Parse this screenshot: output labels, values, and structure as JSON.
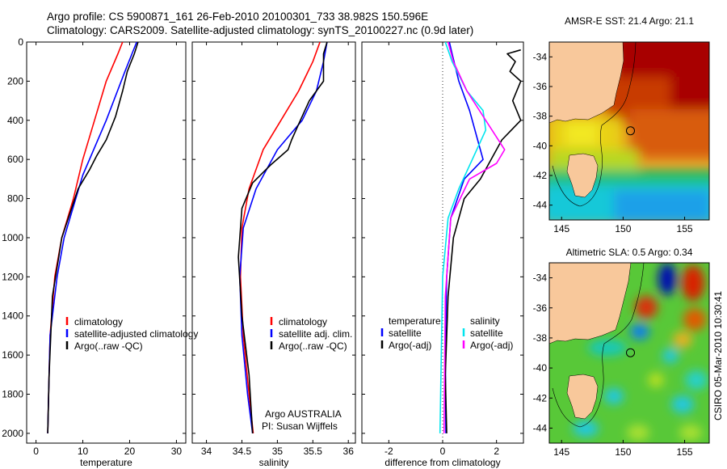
{
  "header": {
    "line1": "Argo profile: CS 5900871_161 26-Feb-2010 20100301_733 38.982S 150.596E",
    "line2": "Climatology: CARS2009. Satellite-adjusted climatology: synTS_20100227.nc (0.9d later)"
  },
  "side_label": "CSIRO 05-Mar-2010 10:30:41",
  "colors": {
    "climatology": "#ff0000",
    "satellite": "#0000ff",
    "argo": "#000000",
    "sal_sat": "#00e5ee",
    "sal_argo": "#ff00ff",
    "land": "#f8c89b"
  },
  "chart_data": [
    {
      "type": "line",
      "xlabel": "temperature",
      "xlim": [
        -2,
        32
      ],
      "xticks": [
        0,
        10,
        20,
        30
      ],
      "ylim": [
        2050,
        0
      ],
      "yticks": [
        0,
        200,
        400,
        600,
        800,
        1000,
        1200,
        1400,
        1600,
        1800,
        2000
      ],
      "legend": [
        "climatology",
        "satellite-adjusted climatology",
        "Argo(..raw -QC)"
      ],
      "series": [
        {
          "name": "climatology",
          "color": "#ff0000",
          "x": [
            18.5,
            17.5,
            15,
            12.5,
            10,
            8,
            5.5,
            4,
            3,
            2.7,
            2.5
          ],
          "y": [
            0,
            60,
            200,
            400,
            600,
            800,
            1000,
            1200,
            1500,
            1800,
            2000
          ]
        },
        {
          "name": "satellite-adjusted climatology",
          "color": "#0000ff",
          "x": [
            21.5,
            20.5,
            19,
            15,
            10,
            8.5,
            6,
            4.5,
            3,
            2.7,
            2.5
          ],
          "y": [
            0,
            60,
            150,
            400,
            680,
            800,
            1000,
            1200,
            1500,
            1800,
            2000
          ]
        },
        {
          "name": "Argo(..raw -QC)",
          "color": "#000000",
          "x": [
            21.8,
            21,
            19.5,
            18.5,
            17,
            15,
            13,
            11.5,
            9,
            5.5,
            3.5,
            2.8,
            2.5
          ],
          "y": [
            0,
            60,
            150,
            250,
            380,
            500,
            580,
            650,
            750,
            1000,
            1300,
            1700,
            2000
          ]
        }
      ]
    },
    {
      "type": "line",
      "xlabel": "salinity",
      "xlim": [
        33.8,
        36.1
      ],
      "xticks": [
        34,
        34.5,
        35,
        35.5,
        36
      ],
      "ylim": [
        2050,
        0
      ],
      "legend": [
        "climatology",
        "satellite adj. clim.",
        "Argo(..raw -QC)"
      ],
      "annotation": [
        "Argo AUSTRALIA",
        "PI: Susan Wijffels"
      ],
      "series": [
        {
          "name": "climatology",
          "color": "#ff0000",
          "x": [
            35.6,
            35.5,
            35.3,
            35.05,
            34.8,
            34.6,
            34.5,
            34.48,
            34.52,
            34.6,
            34.66
          ],
          "y": [
            0,
            100,
            250,
            400,
            550,
            750,
            950,
            1200,
            1500,
            1800,
            2000
          ]
        },
        {
          "name": "satellite adj. clim.",
          "color": "#0000ff",
          "x": [
            35.7,
            35.65,
            35.55,
            35.35,
            35.0,
            34.7,
            34.52,
            34.47,
            34.5,
            34.58,
            34.65
          ],
          "y": [
            0,
            100,
            250,
            400,
            550,
            750,
            950,
            1200,
            1500,
            1800,
            2000
          ]
        },
        {
          "name": "Argo(..raw -QC)",
          "color": "#000000",
          "x": [
            35.7,
            35.65,
            35.65,
            35.45,
            35.3,
            35.2,
            35.15,
            34.9,
            34.65,
            34.5,
            34.45,
            34.5,
            34.6,
            34.65
          ],
          "y": [
            0,
            60,
            200,
            300,
            420,
            500,
            550,
            630,
            720,
            850,
            1100,
            1400,
            1700,
            2000
          ]
        }
      ]
    },
    {
      "type": "line",
      "xlabel": "difference from climatology",
      "xlim": [
        -3,
        3
      ],
      "xticks": [
        -2,
        0,
        2
      ],
      "ylim": [
        2050,
        0
      ],
      "legend_left": [
        "temperature",
        "satellite",
        "Argo(-adj)"
      ],
      "legend_right": [
        "salinity",
        "satellite",
        "Argo(-adj)"
      ],
      "series": [
        {
          "name": "temperature satellite",
          "color": "#0000ff",
          "x": [
            0.25,
            0.35,
            0.6,
            1.0,
            1.3,
            1.5,
            0.8,
            0.3,
            0.15,
            0.1,
            0.12
          ],
          "y": [
            0,
            60,
            200,
            350,
            500,
            600,
            700,
            900,
            1200,
            1600,
            2000
          ]
        },
        {
          "name": "temperature Argo(-adj)",
          "color": "#000000",
          "x": [
            2.9,
            2.4,
            2.7,
            2.5,
            2.9,
            2.6,
            2.9,
            2.2,
            1.4,
            0.8,
            0.4,
            0.2,
            0.1,
            0.15
          ],
          "y": [
            40,
            60,
            100,
            150,
            200,
            300,
            400,
            500,
            700,
            800,
            1000,
            1300,
            1700,
            2000
          ]
        },
        {
          "name": "salinity satellite",
          "color": "#00e5ee",
          "x": [
            0.1,
            0.35,
            0.9,
            1.5,
            1.6,
            1.1,
            0.6,
            0.2,
            0.0,
            -0.05,
            -0.1
          ],
          "y": [
            0,
            100,
            250,
            350,
            450,
            600,
            750,
            900,
            1200,
            1600,
            2000
          ]
        },
        {
          "name": "salinity Argo(-adj)",
          "color": "#ff00ff",
          "x": [
            0.2,
            0.4,
            0.9,
            1.6,
            2.3,
            2.0,
            1.0,
            0.3,
            0.1,
            0.05
          ],
          "y": [
            0,
            100,
            250,
            400,
            550,
            620,
            700,
            900,
            1300,
            2000
          ]
        }
      ]
    },
    {
      "type": "heatmap",
      "title": "AMSR-E SST: 21.4 Argo: 21.1",
      "xlim": [
        144,
        157
      ],
      "ylim": [
        -45,
        -33
      ],
      "xticks": [
        145,
        150,
        155
      ],
      "yticks": [
        -34,
        -36,
        -38,
        -40,
        -42,
        -44
      ],
      "marker": {
        "lon": 150.596,
        "lat": -38.982
      }
    },
    {
      "type": "heatmap",
      "title": "Altimetric SLA: 0.5 Argo: 0.34",
      "xlim": [
        144,
        157
      ],
      "ylim": [
        -45,
        -33
      ],
      "xticks": [
        145,
        150,
        155
      ],
      "yticks": [
        -34,
        -36,
        -38,
        -40,
        -42,
        -44
      ],
      "marker": {
        "lon": 150.596,
        "lat": -38.982
      }
    }
  ]
}
